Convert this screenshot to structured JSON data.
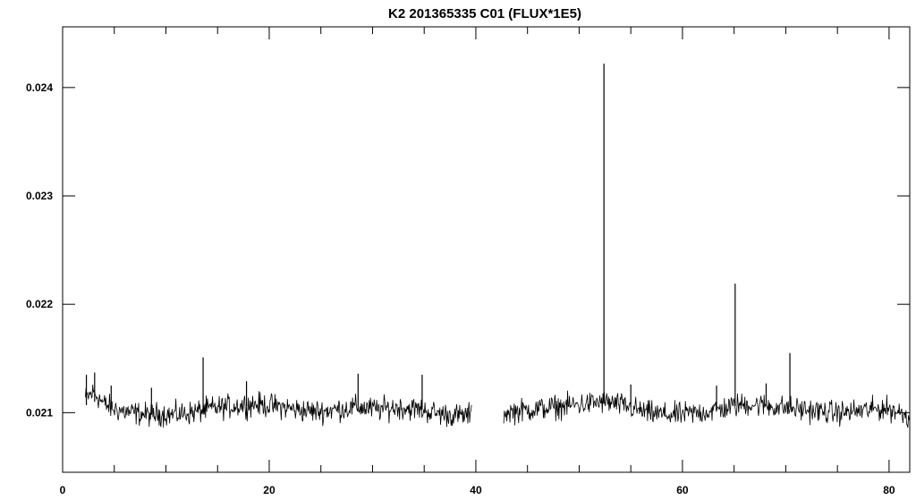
{
  "chart_data": {
    "type": "line",
    "title": "K2 201365335 C01 (FLUX*1E5)",
    "xlabel": "",
    "ylabel": "",
    "xlim": [
      0,
      82
    ],
    "ylim": [
      0.02045,
      0.02456
    ],
    "x_ticks": [
      0,
      20,
      40,
      60,
      80
    ],
    "x_tick_labels": [
      "0",
      "20",
      "40",
      "60",
      "80"
    ],
    "x_minor_step": 5,
    "y_ticks": [
      0.021,
      0.022,
      0.023,
      0.024
    ],
    "y_tick_labels": [
      "0.021",
      "0.022",
      "0.023",
      "0.024"
    ],
    "grid": false,
    "legend": "none",
    "series": [
      {
        "segments": [
          {
            "x": [
              2.2,
              2.6,
              3.0,
              3.4,
              4.0,
              4.8,
              5.6,
              6.5,
              7.5,
              8.5,
              9.5,
              10.5,
              11.5,
              12.5,
              13.5,
              14.5,
              15.5,
              16.5,
              17.5,
              18.5,
              19.5,
              20.5,
              21.5,
              22.5,
              23.5,
              24.5,
              25.5,
              26.5,
              27.5,
              28.5,
              29.5,
              30.5,
              31.5,
              32.5,
              33.5,
              34.5,
              35.5,
              36.5,
              37.5,
              38.5,
              39.6
            ],
            "y": [
              0.02113,
              0.02116,
              0.02119,
              0.02115,
              0.02108,
              0.02104,
              0.02102,
              0.021,
              0.02099,
              0.02098,
              0.02099,
              0.02098,
              0.02099,
              0.021,
              0.02102,
              0.02104,
              0.02105,
              0.02106,
              0.02107,
              0.02108,
              0.02107,
              0.02106,
              0.02105,
              0.02103,
              0.02102,
              0.02101,
              0.02102,
              0.02103,
              0.02104,
              0.02105,
              0.02104,
              0.02103,
              0.02104,
              0.02105,
              0.02104,
              0.02103,
              0.02101,
              0.02099,
              0.02098,
              0.02097,
              0.02098
            ]
          },
          {
            "x": [
              42.7,
              43.5,
              44.5,
              45.5,
              46.5,
              47.5,
              48.5,
              49.5,
              50.5,
              51.5,
              52.5,
              53.5,
              54.5,
              55.5,
              56.5,
              57.5,
              58.5,
              59.5,
              60.5,
              61.5,
              62.5,
              63.5,
              64.5,
              65.5,
              66.5,
              67.5,
              68.5,
              69.5,
              70.5,
              71.5,
              72.5,
              73.5,
              74.5,
              75.5,
              76.5,
              77.5,
              78.5,
              79.5,
              80.5,
              81.5,
              82.0
            ],
            "y": [
              0.021,
              0.02101,
              0.02102,
              0.02103,
              0.02104,
              0.02105,
              0.02106,
              0.02107,
              0.02108,
              0.02109,
              0.0211,
              0.02108,
              0.02106,
              0.02103,
              0.021,
              0.02099,
              0.02098,
              0.02098,
              0.02099,
              0.021,
              0.02101,
              0.02103,
              0.02105,
              0.02107,
              0.02108,
              0.02107,
              0.02106,
              0.02105,
              0.02104,
              0.02103,
              0.02102,
              0.02101,
              0.021,
              0.021,
              0.02101,
              0.02102,
              0.02103,
              0.02104,
              0.02102,
              0.02099,
              0.02095
            ]
          }
        ],
        "noise_amplitude": 0.00012
      }
    ],
    "spikes": [
      {
        "x": 2.3,
        "y_low": 0.02107,
        "y_high": 0.02135
      },
      {
        "x": 3.1,
        "y_low": 0.0211,
        "y_high": 0.02137
      },
      {
        "x": 4.7,
        "y_low": 0.02103,
        "y_high": 0.02125
      },
      {
        "x": 8.6,
        "y_low": 0.02098,
        "y_high": 0.02123
      },
      {
        "x": 13.6,
        "y_low": 0.021,
        "y_high": 0.02151
      },
      {
        "x": 17.8,
        "y_low": 0.02106,
        "y_high": 0.02129
      },
      {
        "x": 28.6,
        "y_low": 0.02103,
        "y_high": 0.02136
      },
      {
        "x": 34.8,
        "y_low": 0.02103,
        "y_high": 0.02135
      },
      {
        "x": 52.4,
        "y_low": 0.02108,
        "y_high": 0.02422
      },
      {
        "x": 55.0,
        "y_low": 0.02105,
        "y_high": 0.02126
      },
      {
        "x": 63.3,
        "y_low": 0.02103,
        "y_high": 0.02125
      },
      {
        "x": 65.1,
        "y_low": 0.02106,
        "y_high": 0.02219
      },
      {
        "x": 68.1,
        "y_low": 0.02106,
        "y_high": 0.02127
      },
      {
        "x": 70.4,
        "y_low": 0.02105,
        "y_high": 0.02155
      }
    ]
  }
}
